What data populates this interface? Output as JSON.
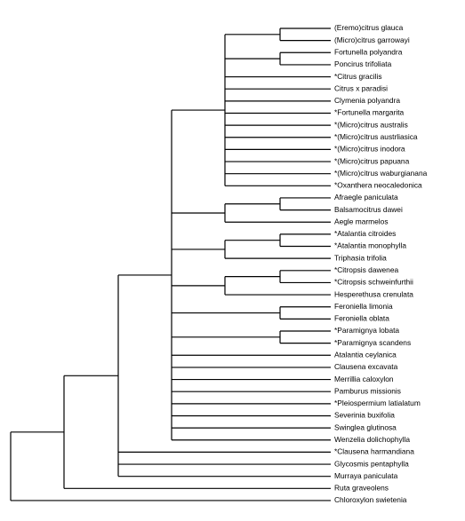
{
  "tree": {
    "line_color": "#000000",
    "taxa": [
      "(Eremo)citrus glauca",
      "(Micro)citrus garrowayi",
      "Fortunella polyandra",
      "Poncirus trifoliata",
      "*Citrus gracilis",
      "Citrus x paradisi",
      "Clymenia polyandra",
      "*Fortunella margarita",
      "*(Micro)citrus australis",
      "*(Micro)citrus austrliasica",
      "*(Micro)citrus inodora",
      "*(Micro)citrus papuana",
      "*(Micro)citrus waburgianana",
      "*Oxanthera neocaledonica",
      "Afraegle paniculata",
      "Balsamocitrus dawei",
      "Aegle marmelos",
      "*Atalantia citroides",
      "*Atalantia monophylla",
      "Triphasia trifolia",
      "*Citropsis dawenea",
      "*Citropsis schweinfurthii",
      "Hesperethusa crenulata",
      "Feroniella limonia",
      "Feroniella oblata",
      "*Paramignya lobata",
      "*Paramignya scandens",
      "Atalantia ceylanica",
      "Clausena excavata",
      "Merrillia caloxylon",
      "Pamburus missionis",
      "*Pleiospermium latialatum",
      "Severinia buxifolia",
      "Swinglea glutinosa",
      "Wenzelia dolichophylla",
      "*Clausena harmandiana",
      "Glycosmis pentaphylla",
      "Murraya paniculata",
      "Ruta graveolens",
      "Chloroxylon swietenia"
    ]
  }
}
